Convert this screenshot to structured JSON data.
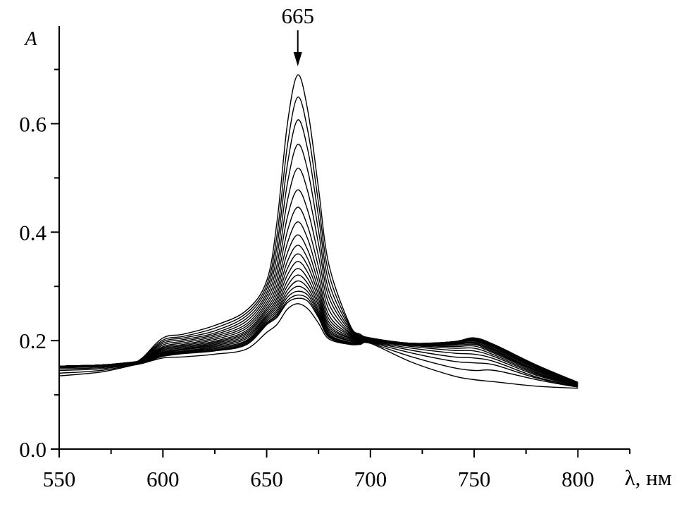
{
  "chart_data": {
    "type": "line",
    "xlabel": "λ, нм",
    "ylabel": "A",
    "xlim": [
      550,
      825
    ],
    "ylim": [
      0.0,
      0.78
    ],
    "x_ticks": [
      550,
      600,
      650,
      700,
      750,
      800
    ],
    "x_tick_labels": [
      "550",
      "600",
      "650",
      "700",
      "750",
      "800"
    ],
    "y_ticks": [
      0.0,
      0.2,
      0.4,
      0.6
    ],
    "y_tick_labels": [
      "0.0",
      "0.2",
      "0.4",
      "0.6"
    ],
    "grid": false,
    "legend": "none",
    "line_color": "#000000",
    "annotation": {
      "text": "665",
      "x": 665,
      "arrow": "down"
    },
    "x": [
      550,
      570,
      585,
      590,
      600,
      610,
      625,
      640,
      650,
      655,
      660,
      665,
      670,
      675,
      680,
      690,
      695,
      700,
      720,
      740,
      750,
      760,
      780,
      800
    ],
    "series": [
      {
        "values": [
          0.153,
          0.155,
          0.16,
          0.168,
          0.205,
          0.212,
          0.228,
          0.255,
          0.31,
          0.42,
          0.6,
          0.69,
          0.62,
          0.48,
          0.34,
          0.23,
          0.212,
          0.205,
          0.195,
          0.198,
          0.205,
          0.192,
          0.155,
          0.123
        ]
      },
      {
        "values": [
          0.153,
          0.155,
          0.16,
          0.167,
          0.201,
          0.208,
          0.223,
          0.25,
          0.302,
          0.395,
          0.56,
          0.649,
          0.583,
          0.453,
          0.323,
          0.227,
          0.21,
          0.204,
          0.195,
          0.198,
          0.205,
          0.192,
          0.155,
          0.123
        ]
      },
      {
        "values": [
          0.153,
          0.155,
          0.16,
          0.166,
          0.198,
          0.205,
          0.218,
          0.245,
          0.295,
          0.375,
          0.525,
          0.607,
          0.548,
          0.428,
          0.307,
          0.224,
          0.209,
          0.204,
          0.195,
          0.198,
          0.204,
          0.191,
          0.154,
          0.122
        ]
      },
      {
        "values": [
          0.153,
          0.155,
          0.16,
          0.166,
          0.195,
          0.202,
          0.214,
          0.24,
          0.288,
          0.357,
          0.49,
          0.562,
          0.51,
          0.402,
          0.292,
          0.221,
          0.208,
          0.204,
          0.195,
          0.197,
          0.204,
          0.19,
          0.153,
          0.122
        ]
      },
      {
        "values": [
          0.153,
          0.155,
          0.16,
          0.165,
          0.192,
          0.199,
          0.211,
          0.235,
          0.282,
          0.34,
          0.458,
          0.518,
          0.472,
          0.378,
          0.28,
          0.218,
          0.207,
          0.203,
          0.195,
          0.197,
          0.203,
          0.189,
          0.152,
          0.121
        ]
      },
      {
        "values": [
          0.153,
          0.155,
          0.16,
          0.165,
          0.189,
          0.196,
          0.208,
          0.23,
          0.276,
          0.326,
          0.428,
          0.478,
          0.437,
          0.355,
          0.268,
          0.215,
          0.206,
          0.203,
          0.195,
          0.197,
          0.202,
          0.188,
          0.151,
          0.121
        ]
      },
      {
        "values": [
          0.153,
          0.155,
          0.16,
          0.164,
          0.187,
          0.193,
          0.205,
          0.226,
          0.27,
          0.314,
          0.402,
          0.446,
          0.408,
          0.335,
          0.257,
          0.213,
          0.205,
          0.203,
          0.194,
          0.196,
          0.201,
          0.187,
          0.15,
          0.12
        ]
      },
      {
        "values": [
          0.153,
          0.155,
          0.16,
          0.164,
          0.185,
          0.191,
          0.202,
          0.222,
          0.265,
          0.303,
          0.38,
          0.419,
          0.385,
          0.318,
          0.247,
          0.211,
          0.204,
          0.202,
          0.194,
          0.196,
          0.2,
          0.186,
          0.149,
          0.12
        ]
      },
      {
        "values": [
          0.153,
          0.155,
          0.16,
          0.163,
          0.183,
          0.189,
          0.199,
          0.218,
          0.26,
          0.294,
          0.362,
          0.395,
          0.365,
          0.305,
          0.24,
          0.209,
          0.203,
          0.202,
          0.194,
          0.195,
          0.199,
          0.184,
          0.148,
          0.119
        ]
      },
      {
        "values": [
          0.153,
          0.155,
          0.16,
          0.163,
          0.181,
          0.187,
          0.197,
          0.215,
          0.256,
          0.286,
          0.346,
          0.376,
          0.349,
          0.294,
          0.234,
          0.207,
          0.202,
          0.202,
          0.194,
          0.194,
          0.197,
          0.182,
          0.146,
          0.119
        ]
      },
      {
        "values": [
          0.153,
          0.155,
          0.16,
          0.162,
          0.179,
          0.185,
          0.195,
          0.212,
          0.252,
          0.279,
          0.333,
          0.36,
          0.336,
          0.285,
          0.229,
          0.205,
          0.201,
          0.201,
          0.193,
          0.193,
          0.195,
          0.18,
          0.145,
          0.118
        ]
      },
      {
        "values": [
          0.153,
          0.155,
          0.16,
          0.162,
          0.178,
          0.184,
          0.193,
          0.209,
          0.248,
          0.273,
          0.321,
          0.346,
          0.324,
          0.277,
          0.225,
          0.204,
          0.2,
          0.201,
          0.193,
          0.191,
          0.193,
          0.178,
          0.144,
          0.118
        ]
      },
      {
        "values": [
          0.153,
          0.155,
          0.16,
          0.161,
          0.177,
          0.183,
          0.191,
          0.206,
          0.245,
          0.267,
          0.31,
          0.333,
          0.313,
          0.27,
          0.221,
          0.202,
          0.199,
          0.2,
          0.192,
          0.189,
          0.19,
          0.176,
          0.142,
          0.117
        ]
      },
      {
        "values": [
          0.152,
          0.154,
          0.159,
          0.161,
          0.176,
          0.181,
          0.189,
          0.203,
          0.242,
          0.262,
          0.301,
          0.321,
          0.304,
          0.264,
          0.218,
          0.2,
          0.198,
          0.2,
          0.191,
          0.186,
          0.186,
          0.173,
          0.14,
          0.117
        ]
      },
      {
        "values": [
          0.151,
          0.153,
          0.158,
          0.16,
          0.175,
          0.18,
          0.187,
          0.2,
          0.239,
          0.257,
          0.293,
          0.31,
          0.296,
          0.258,
          0.215,
          0.199,
          0.197,
          0.199,
          0.189,
          0.182,
          0.181,
          0.17,
          0.138,
          0.116
        ]
      },
      {
        "values": [
          0.15,
          0.152,
          0.158,
          0.16,
          0.174,
          0.179,
          0.185,
          0.198,
          0.236,
          0.253,
          0.286,
          0.3,
          0.289,
          0.253,
          0.212,
          0.197,
          0.196,
          0.198,
          0.186,
          0.177,
          0.175,
          0.166,
          0.136,
          0.116
        ]
      },
      {
        "values": [
          0.148,
          0.15,
          0.157,
          0.159,
          0.173,
          0.178,
          0.183,
          0.196,
          0.233,
          0.249,
          0.28,
          0.291,
          0.283,
          0.249,
          0.21,
          0.196,
          0.195,
          0.197,
          0.182,
          0.17,
          0.168,
          0.161,
          0.133,
          0.115
        ]
      },
      {
        "values": [
          0.145,
          0.148,
          0.156,
          0.159,
          0.172,
          0.177,
          0.182,
          0.194,
          0.231,
          0.246,
          0.274,
          0.284,
          0.277,
          0.245,
          0.208,
          0.195,
          0.195,
          0.196,
          0.177,
          0.162,
          0.159,
          0.155,
          0.131,
          0.115
        ]
      },
      {
        "values": [
          0.14,
          0.145,
          0.155,
          0.158,
          0.171,
          0.176,
          0.181,
          0.192,
          0.229,
          0.243,
          0.27,
          0.278,
          0.272,
          0.242,
          0.206,
          0.194,
          0.194,
          0.195,
          0.17,
          0.15,
          0.145,
          0.145,
          0.128,
          0.114
        ]
      },
      {
        "values": [
          0.135,
          0.142,
          0.154,
          0.158,
          0.168,
          0.17,
          0.175,
          0.184,
          0.215,
          0.23,
          0.258,
          0.268,
          0.258,
          0.232,
          0.203,
          0.193,
          0.193,
          0.195,
          0.16,
          0.135,
          0.128,
          0.124,
          0.116,
          0.112
        ]
      }
    ]
  }
}
